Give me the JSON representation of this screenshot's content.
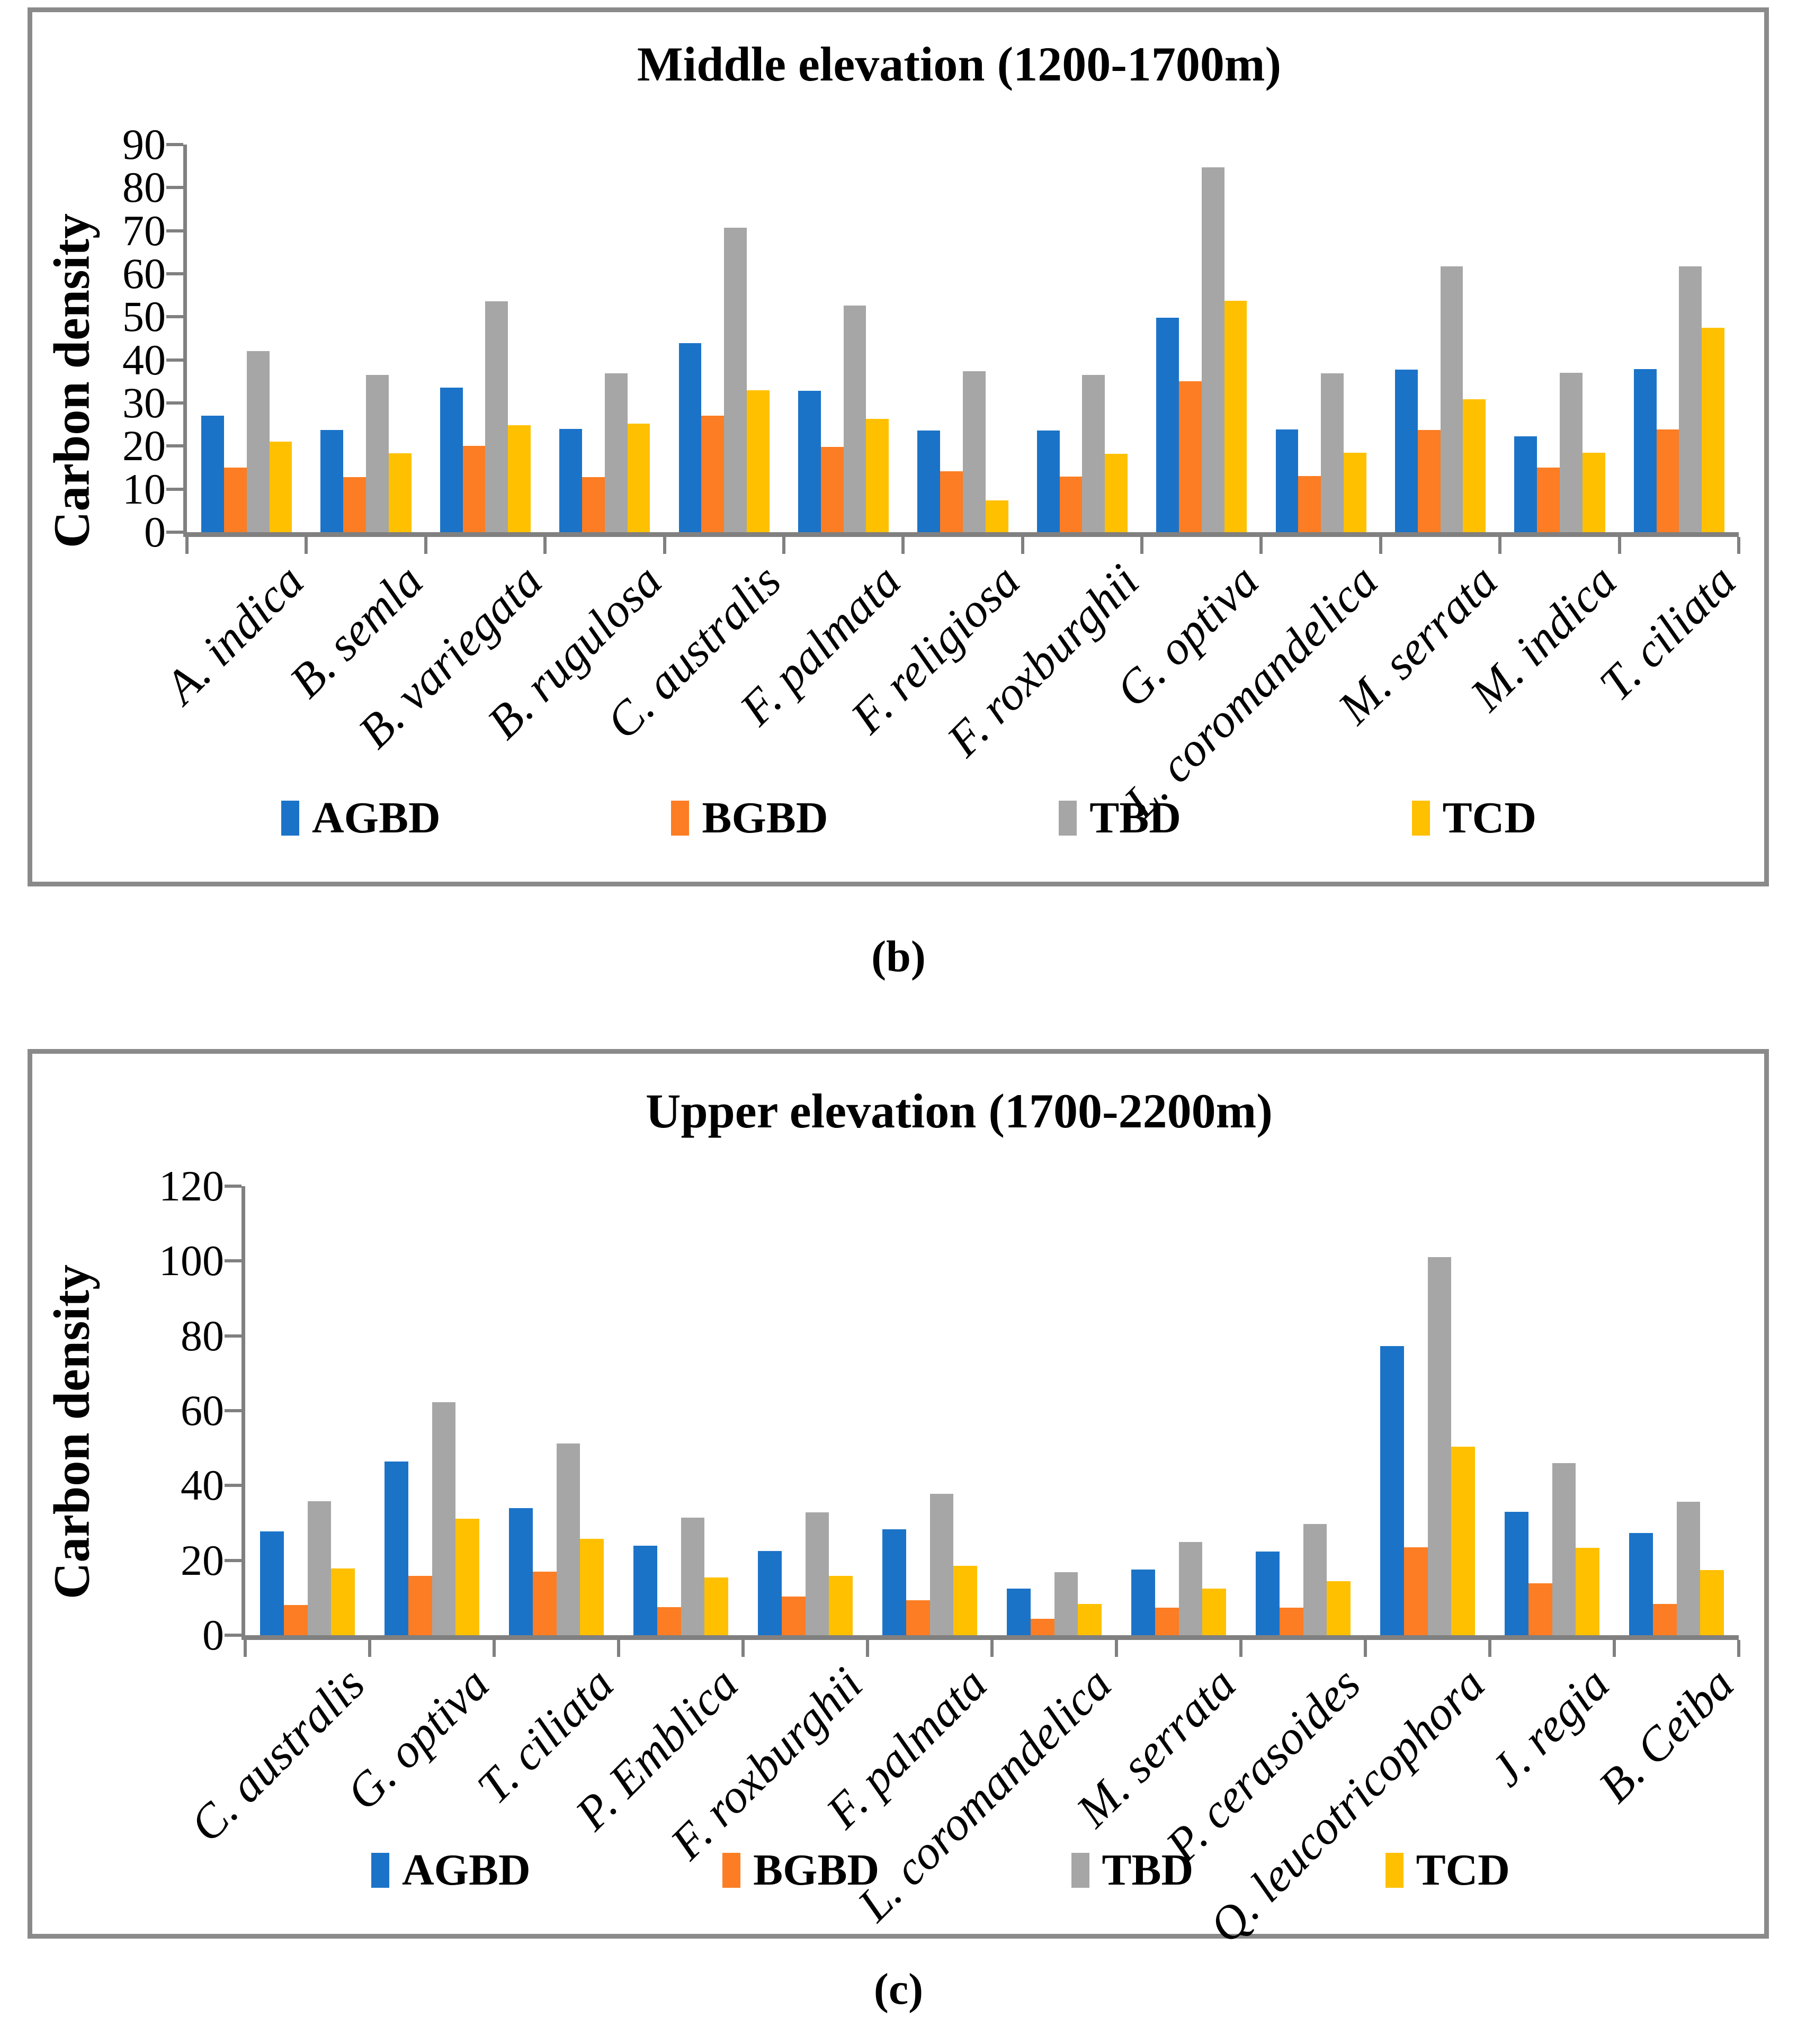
{
  "figure": {
    "background": "#ffffff",
    "panel_border_color": "#8a8a8a",
    "axis_color": "#808080"
  },
  "chart_data": [
    {
      "type": "bar",
      "panel_label": "(b)",
      "title": "Middle elevation (1200-1700m)",
      "ylabel": "Carbon density",
      "xlabel": "",
      "ylim": [
        0,
        90
      ],
      "ytick_step": 10,
      "yticks": [
        90,
        80,
        70,
        60,
        50,
        40,
        30,
        20,
        10,
        0
      ],
      "grid": false,
      "legend_position": "bottom",
      "legend": [
        "AGBD",
        "BGBD",
        "TBD",
        "TCD"
      ],
      "categories": [
        "A. indica",
        "B. semla",
        "B. variegata",
        "B. rugulosa",
        "C. australis",
        "F. palmata",
        "F. religiosa",
        "F. roxburghii",
        "G. optiva",
        "L. coromandelica",
        "M. serrata",
        "M. indica",
        "T. ciliata"
      ],
      "series": [
        {
          "name": "AGBD",
          "color": "#1B73C8",
          "values": [
            27.0,
            23.7,
            33.6,
            24.0,
            43.9,
            32.8,
            23.6,
            23.6,
            49.8,
            23.8,
            37.8,
            22.3,
            37.9
          ]
        },
        {
          "name": "BGBD",
          "color": "#FC7D23",
          "values": [
            15.0,
            12.8,
            20.0,
            12.8,
            27.0,
            19.8,
            14.2,
            12.9,
            35.0,
            13.0,
            23.7,
            15.0,
            23.8
          ]
        },
        {
          "name": "TBD",
          "color": "#A6A6A6",
          "values": [
            42.0,
            36.5,
            53.6,
            36.9,
            70.7,
            52.6,
            37.4,
            36.5,
            84.7,
            36.9,
            61.7,
            37.0,
            61.7
          ]
        },
        {
          "name": "TCD",
          "color": "#FFC000",
          "values": [
            21.0,
            18.3,
            24.8,
            25.2,
            33.0,
            26.3,
            7.4,
            18.2,
            53.7,
            18.4,
            30.9,
            18.5,
            47.5
          ]
        }
      ]
    },
    {
      "type": "bar",
      "panel_label": "(c)",
      "title": "Upper elevation (1700-2200m)",
      "ylabel": "Carbon density",
      "xlabel": "",
      "ylim": [
        0,
        120
      ],
      "ytick_step": 20,
      "yticks": [
        120,
        100,
        80,
        60,
        40,
        20,
        0
      ],
      "grid": false,
      "legend_position": "bottom",
      "legend": [
        "AGBD",
        "BGBD",
        "TBD",
        "TCD"
      ],
      "categories": [
        "C. australis",
        "G. optiva",
        "T. ciliata",
        "P. Emblica",
        "F. roxburghii",
        "F. palmata",
        "L. coromandelica",
        "M. serrata",
        "P. cerasoides",
        "Q. leucotricophora",
        "J. regia",
        "B. Ceiba"
      ],
      "series": [
        {
          "name": "AGBD",
          "color": "#1B73C8",
          "values": [
            27.7,
            46.4,
            34.0,
            23.9,
            22.5,
            28.3,
            12.4,
            17.5,
            22.4,
            77.3,
            33.0,
            27.3
          ]
        },
        {
          "name": "BGBD",
          "color": "#FC7D23",
          "values": [
            8.0,
            15.8,
            17.0,
            7.5,
            10.4,
            9.4,
            4.4,
            7.4,
            7.3,
            23.5,
            13.9,
            8.4
          ]
        },
        {
          "name": "TBD",
          "color": "#A6A6A6",
          "values": [
            35.8,
            62.3,
            51.2,
            31.4,
            32.9,
            37.8,
            16.8,
            24.9,
            29.7,
            101.0,
            46.0,
            35.7
          ]
        },
        {
          "name": "TCD",
          "color": "#FFC000",
          "values": [
            17.9,
            31.2,
            25.8,
            15.4,
            15.9,
            18.6,
            8.3,
            12.4,
            14.4,
            50.4,
            23.3,
            17.4
          ]
        }
      ]
    }
  ]
}
